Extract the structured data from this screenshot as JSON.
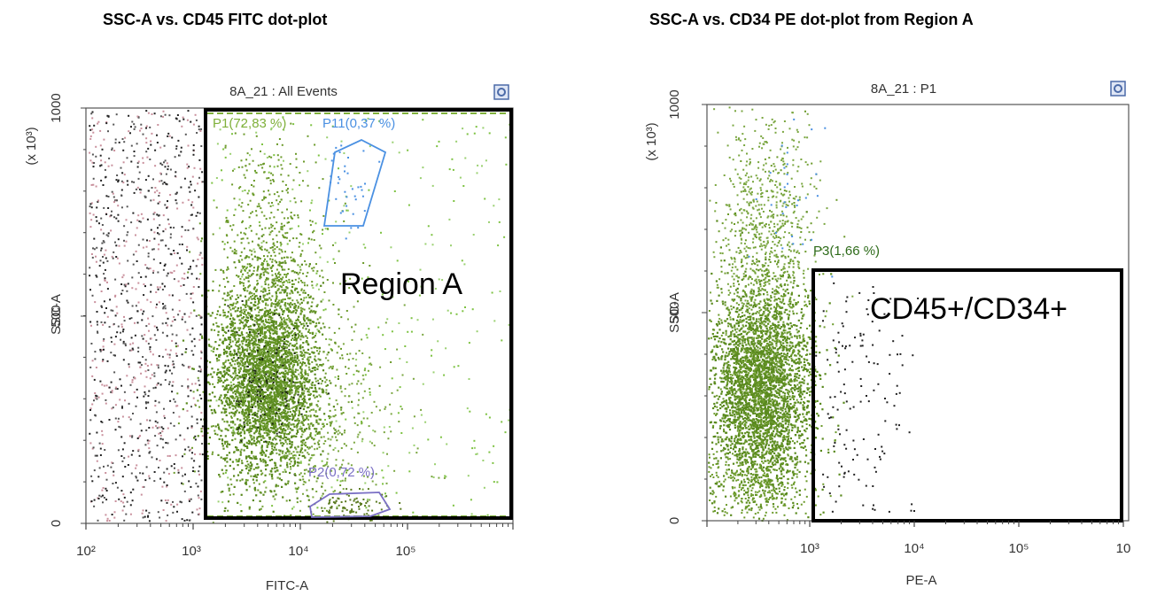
{
  "figure_titles": {
    "left": "SSC-A vs. CD45 FITC dot-plot",
    "right": "SSC-A vs. CD34 PE dot-plot from Region A"
  },
  "colors": {
    "green_population": "#5a8a1e",
    "light_green": "#7dc242",
    "black_events": "#222222",
    "blue_gate": "#4a90e2",
    "purple_gate": "#7a6fc4",
    "dashed_green": "#7fb03a",
    "region_border": "#000000"
  },
  "chart_data": [
    {
      "type": "scatter",
      "plot_title": "8A_21 : All Events",
      "xlabel": "FITC-A",
      "ylabel": "SSC-A",
      "y_multiplier": "(x 10³)",
      "x_scale": "log",
      "xlim": [
        100,
        1000000
      ],
      "ylim": [
        0,
        1000
      ],
      "x_tick_labels": [
        "10²",
        "10³",
        "10⁴",
        "10⁵"
      ],
      "y_tick_labels": [
        "0",
        "500",
        "1000"
      ],
      "gates": [
        {
          "name": "P1",
          "label": "P1(72,83 %)",
          "percent": 72.83,
          "color": "#7fb03a"
        },
        {
          "name": "P11",
          "label": "P11(0,37 %)",
          "percent": 0.37,
          "color": "#4a90e2"
        },
        {
          "name": "P2",
          "label": "P2(0,72 %)",
          "percent": 0.72,
          "color": "#7a6fc4"
        }
      ],
      "annotation": "Region A",
      "populations": [
        {
          "name": "debris",
          "x_range": [
            100,
            1200
          ],
          "y_range": [
            0,
            1000
          ],
          "color": "black/pink"
        },
        {
          "name": "main",
          "x_center": 4500,
          "y_center": 320,
          "color": "green"
        }
      ]
    },
    {
      "type": "scatter",
      "plot_title": "8A_21 : P1",
      "xlabel": "PE-A",
      "ylabel": "SSC-A",
      "y_multiplier": "(x 10³)",
      "x_scale": "log",
      "xlim": [
        100,
        1000000
      ],
      "ylim": [
        0,
        1000
      ],
      "x_tick_labels": [
        "10³",
        "10⁴",
        "10⁵",
        "10"
      ],
      "y_tick_labels": [
        "0",
        "500",
        "1000"
      ],
      "gates": [
        {
          "name": "P3",
          "label": "P3(1,66 %)",
          "percent": 1.66,
          "color": "#2e6b1a"
        }
      ],
      "annotation": "CD45+/CD34+",
      "populations": [
        {
          "name": "main",
          "x_center": 400,
          "y_center": 310,
          "color": "green"
        },
        {
          "name": "CD34+",
          "x_range": [
            1200,
            14000
          ],
          "y_range": [
            40,
            580
          ],
          "color": "black"
        }
      ]
    }
  ]
}
